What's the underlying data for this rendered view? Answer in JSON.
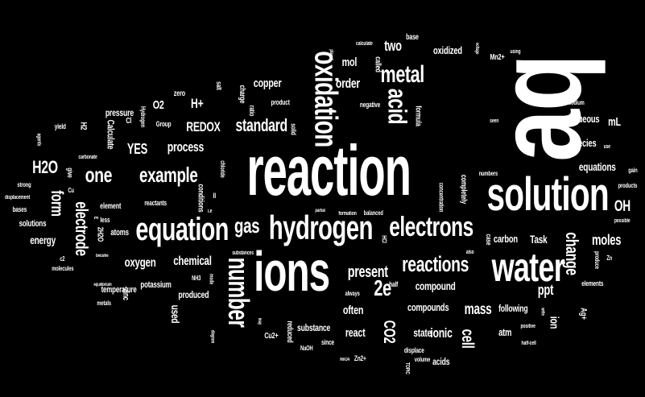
{
  "cloud": {
    "background": "#000000",
    "text_color": "#ffffff",
    "words": [
      "aq",
      "reaction",
      "solution",
      "ions",
      "water",
      "hydrogen",
      "equation",
      "electrons",
      "oxidation",
      "metal",
      "acid",
      "number",
      "one",
      "example",
      "reactions",
      "gas",
      "standard",
      "electrode",
      "H2O",
      "2e",
      "present",
      "change",
      "process",
      "REDOX",
      "form",
      "YES",
      "mass",
      "OH",
      "cell",
      "moles",
      "ppt",
      "chemical",
      "oxygen",
      "order",
      "copper",
      "mol",
      "two",
      "oxidized",
      "used",
      "state",
      "ionic",
      "compounds",
      "compound",
      "often",
      "CO2",
      "react",
      "substance",
      "H+",
      "O2",
      "equations",
      "species",
      "aqueous",
      "mL",
      "carbon",
      "Task",
      "Ag+",
      "ion",
      "atm",
      "following",
      "energy",
      "produced",
      "temperature",
      "potassium",
      "zinc",
      "acids",
      "Mn2+",
      "base",
      "called",
      "formula",
      "charge",
      "product",
      "ratio",
      "solid",
      "salt",
      "zero",
      "pressure",
      "Calculate",
      "Hydrogen",
      "Group",
      "H2",
      "yield",
      "give",
      "strong",
      "displacement",
      "bases",
      "solutions",
      "Cu",
      "carbonate",
      "conditions",
      "II",
      "chloride",
      "element",
      "reactants",
      "atoms",
      "less",
      "2H2O",
      "E",
      "i.e",
      "substances",
      "NH3",
      "mode",
      "Cu2+",
      "NaOH",
      "since",
      "reduced",
      "Zn2+",
      "displace",
      "volume",
      "TOPIC",
      "MnO4",
      "HCl",
      "half",
      "always",
      "balanced",
      "formation",
      "partial",
      "concentration",
      "completely",
      "numbers",
      "case",
      "also",
      "negative",
      "seen",
      "sodium",
      "use",
      "gain",
      "products",
      "possible",
      "produce",
      "Zn",
      "elements",
      "positive",
      "write",
      "half-cell",
      "calculate",
      "placed",
      "voltage",
      "using",
      "metals",
      "equilibrium",
      "molecules",
      "c2",
      "became",
      "agents",
      "diagram",
      "may",
      "Cl"
    ]
  }
}
